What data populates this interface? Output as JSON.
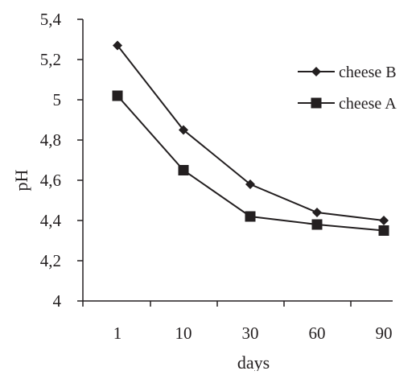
{
  "chart_data": {
    "type": "line",
    "categories": [
      "1",
      "10",
      "30",
      "60",
      "90"
    ],
    "series": [
      {
        "name": "cheese B",
        "marker": "diamond",
        "values": [
          5.27,
          4.85,
          4.58,
          4.44,
          4.4
        ]
      },
      {
        "name": "cheese A",
        "marker": "square",
        "values": [
          5.02,
          4.65,
          4.42,
          4.38,
          4.35
        ]
      }
    ],
    "xlabel": "days",
    "ylabel": "pH",
    "ylim": [
      4,
      5.4
    ],
    "yticks": [
      4,
      4.2,
      4.4,
      4.6,
      4.8,
      5,
      5.2,
      5.4
    ],
    "ytick_labels": [
      "4",
      "4,2",
      "4,4",
      "4,6",
      "4,8",
      "5",
      "5,2",
      "5,4"
    ],
    "legend_position": "top-right",
    "grid": false,
    "line_color": "#231f20"
  }
}
